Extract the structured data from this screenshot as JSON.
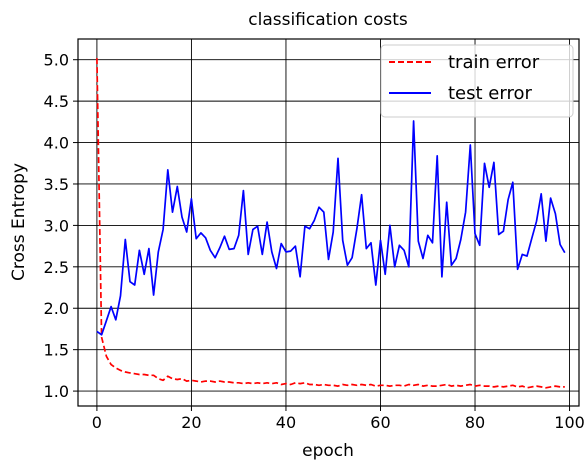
{
  "chart_data": {
    "type": "line",
    "title": "classification costs",
    "xlabel": "epoch",
    "ylabel": "Cross Entropy",
    "xlim": [
      -4,
      102
    ],
    "ylim": [
      0.82,
      5.25
    ],
    "xticks": [
      0,
      20,
      40,
      60,
      80,
      100
    ],
    "yticks": [
      1.0,
      1.5,
      2.0,
      2.5,
      3.0,
      3.5,
      4.0,
      4.5,
      5.0
    ],
    "ytick_labels": [
      "1.0",
      "1.5",
      "2.0",
      "2.5",
      "3.0",
      "3.5",
      "4.0",
      "4.5",
      "5.0"
    ],
    "grid": true,
    "legend_position": "top-right",
    "x": [
      0,
      1,
      2,
      3,
      4,
      5,
      6,
      7,
      8,
      9,
      10,
      11,
      12,
      13,
      14,
      15,
      16,
      17,
      18,
      19,
      20,
      21,
      22,
      23,
      24,
      25,
      26,
      27,
      28,
      29,
      30,
      31,
      32,
      33,
      34,
      35,
      36,
      37,
      38,
      39,
      40,
      41,
      42,
      43,
      44,
      45,
      46,
      47,
      48,
      49,
      50,
      51,
      52,
      53,
      54,
      55,
      56,
      57,
      58,
      59,
      60,
      61,
      62,
      63,
      64,
      65,
      66,
      67,
      68,
      69,
      70,
      71,
      72,
      73,
      74,
      75,
      76,
      77,
      78,
      79,
      80,
      81,
      82,
      83,
      84,
      85,
      86,
      87,
      88,
      89,
      90,
      91,
      92,
      93,
      94,
      95,
      96,
      97,
      98,
      99
    ],
    "series": [
      {
        "name": "train error",
        "color": "#ff0000",
        "dash": true,
        "values": [
          5.02,
          1.65,
          1.42,
          1.32,
          1.28,
          1.25,
          1.23,
          1.22,
          1.21,
          1.2,
          1.2,
          1.19,
          1.19,
          1.15,
          1.13,
          1.18,
          1.15,
          1.14,
          1.15,
          1.12,
          1.13,
          1.12,
          1.11,
          1.12,
          1.12,
          1.11,
          1.12,
          1.11,
          1.11,
          1.1,
          1.1,
          1.09,
          1.1,
          1.09,
          1.1,
          1.09,
          1.1,
          1.09,
          1.1,
          1.08,
          1.09,
          1.08,
          1.1,
          1.09,
          1.1,
          1.08,
          1.08,
          1.07,
          1.08,
          1.07,
          1.07,
          1.06,
          1.08,
          1.07,
          1.08,
          1.07,
          1.08,
          1.07,
          1.08,
          1.06,
          1.07,
          1.07,
          1.06,
          1.07,
          1.07,
          1.06,
          1.08,
          1.07,
          1.08,
          1.06,
          1.07,
          1.06,
          1.06,
          1.07,
          1.08,
          1.06,
          1.07,
          1.06,
          1.07,
          1.08,
          1.06,
          1.07,
          1.06,
          1.06,
          1.05,
          1.06,
          1.05,
          1.06,
          1.07,
          1.05,
          1.06,
          1.04,
          1.05,
          1.06,
          1.05,
          1.04,
          1.05,
          1.06,
          1.05,
          1.05
        ]
      },
      {
        "name": "test error",
        "color": "#0000ff",
        "dash": false,
        "values": [
          1.72,
          1.68,
          1.85,
          2.02,
          1.86,
          2.15,
          2.83,
          2.32,
          2.28,
          2.7,
          2.41,
          2.72,
          2.16,
          2.68,
          2.95,
          3.67,
          3.16,
          3.47,
          3.1,
          2.92,
          3.32,
          2.84,
          2.91,
          2.85,
          2.7,
          2.61,
          2.73,
          2.87,
          2.71,
          2.72,
          2.88,
          3.42,
          2.65,
          2.95,
          2.99,
          2.65,
          3.04,
          2.68,
          2.48,
          2.78,
          2.68,
          2.69,
          2.75,
          2.38,
          2.99,
          2.96,
          3.06,
          3.22,
          3.16,
          2.59,
          2.92,
          3.81,
          2.82,
          2.52,
          2.61,
          2.96,
          3.37,
          2.72,
          2.79,
          2.28,
          2.82,
          2.41,
          3.0,
          2.5,
          2.76,
          2.7,
          2.5,
          4.26,
          2.81,
          2.6,
          2.88,
          2.79,
          3.84,
          2.38,
          3.28,
          2.52,
          2.6,
          2.83,
          3.16,
          3.97,
          2.9,
          2.76,
          3.75,
          3.46,
          3.76,
          2.89,
          2.93,
          3.31,
          3.52,
          2.47,
          2.65,
          2.63,
          2.84,
          3.05,
          3.38,
          2.81,
          3.33,
          3.14,
          2.77,
          2.67
        ]
      }
    ]
  }
}
